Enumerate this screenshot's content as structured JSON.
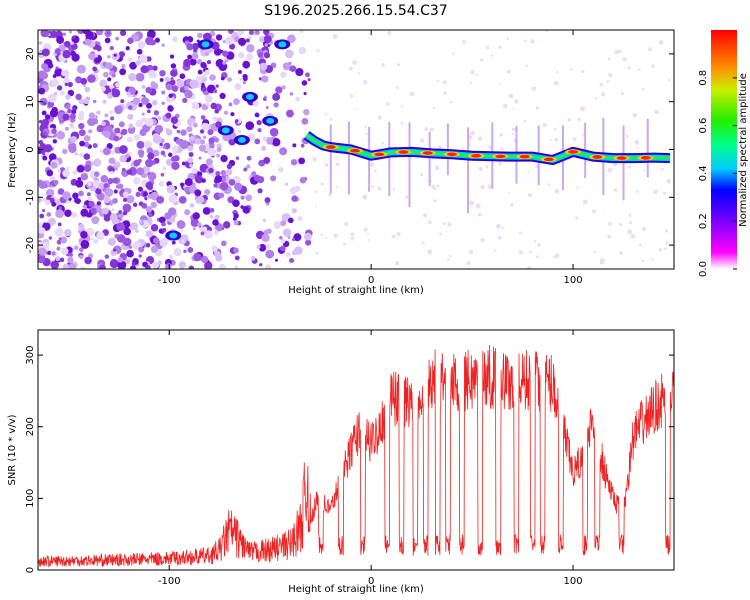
{
  "title": "S196.2025.266.15.54.C37",
  "chart_data": [
    {
      "type": "heatmap",
      "name": "spectrogram",
      "xlabel": "Height of straight line (km)",
      "ylabel": "Frequency (Hz)",
      "xlim": [
        -165,
        150
      ],
      "ylim": [
        -25,
        25
      ],
      "xticks": [
        -100,
        0,
        100
      ],
      "yticks": [
        -20,
        -10,
        0,
        10,
        20
      ],
      "colorbar": {
        "label": "Normalized spectral amplitude",
        "range": [
          0,
          1
        ],
        "ticks": [
          "0.0",
          "0.2",
          "0.4",
          "0.6",
          "0.8"
        ]
      },
      "signal_track": {
        "description_x_km": [
          -32,
          -28,
          -24,
          -20,
          -10,
          0,
          10,
          20,
          30,
          40,
          50,
          60,
          70,
          80,
          90,
          100,
          110,
          120,
          130,
          140,
          148
        ],
        "frequency_hz": [
          3.0,
          1.8,
          0.9,
          0.5,
          0.0,
          -1.3,
          -0.6,
          -0.5,
          -0.8,
          -1.0,
          -1.3,
          -1.4,
          -1.5,
          -1.5,
          -2.2,
          -0.5,
          -1.5,
          -1.8,
          -1.8,
          -1.7,
          -1.8
        ]
      }
    },
    {
      "type": "line",
      "name": "snr",
      "xlabel": "Height of straight line (km)",
      "ylabel": "SNR (10 * v/v)",
      "xlim": [
        -165,
        150
      ],
      "ylim": [
        0,
        335
      ],
      "xticks": [
        -100,
        0,
        100
      ],
      "yticks": [
        0,
        100,
        200,
        300
      ],
      "color": "#ee2222",
      "envelope": {
        "x": [
          -165,
          -120,
          -100,
          -80,
          -75,
          -70,
          -60,
          -50,
          -40,
          -35,
          -31,
          -30,
          -27,
          -20,
          -10,
          -5,
          0,
          10,
          20,
          30,
          40,
          50,
          60,
          70,
          80,
          90,
          100,
          105,
          110,
          115,
          120,
          125,
          130,
          140,
          150
        ],
        "y": [
          15,
          18,
          20,
          25,
          35,
          70,
          30,
          35,
          45,
          75,
          160,
          70,
          110,
          95,
          185,
          225,
          195,
          265,
          260,
          295,
          290,
          295,
          300,
          290,
          295,
          290,
          150,
          175,
          240,
          160,
          110,
          90,
          210,
          250,
          280
        ]
      },
      "dips_x_km": [
        -25,
        -15,
        -4,
        8,
        15,
        22,
        27,
        33,
        38,
        45,
        54,
        63,
        72,
        80,
        85,
        94,
        106,
        112,
        124,
        147
      ]
    }
  ]
}
